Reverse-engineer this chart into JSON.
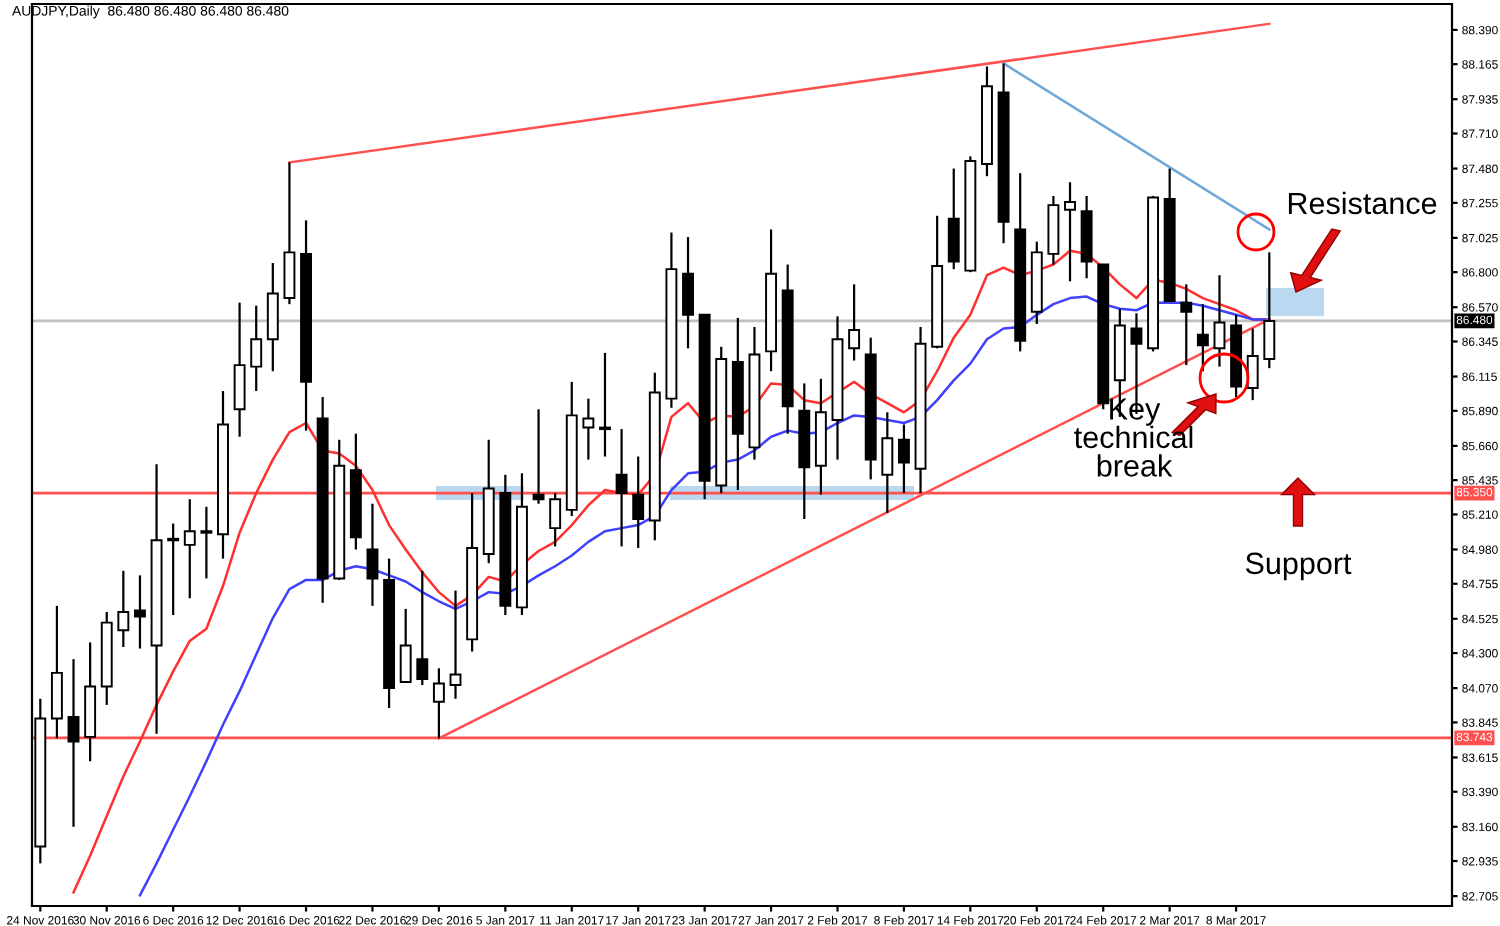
{
  "chart_data": {
    "type": "candlestick",
    "title": "AUDJPY,Daily  86.480 86.480 86.480 86.480",
    "categories": [
      "24 Nov 2016",
      null,
      null,
      null,
      "30 Nov 2016",
      null,
      null,
      null,
      "6 Dec 2016",
      null,
      null,
      null,
      "12 Dec 2016",
      null,
      null,
      null,
      "16 Dec 2016",
      null,
      null,
      null,
      "22 Dec 2016",
      null,
      null,
      null,
      "29 Dec 2016",
      null,
      null,
      null,
      "5 Jan 2017",
      null,
      null,
      null,
      "11 Jan 2017",
      null,
      null,
      null,
      "17 Jan 2017",
      null,
      null,
      null,
      "23 Jan 2017",
      null,
      null,
      null,
      "27 Jan 2017",
      null,
      null,
      null,
      "2 Feb 2017",
      null,
      null,
      null,
      "8 Feb 2017",
      null,
      null,
      null,
      "14 Feb 2017",
      null,
      null,
      null,
      "20 Feb 2017",
      null,
      null,
      null,
      "24 Feb 2017",
      null,
      null,
      null,
      "2 Mar 2017",
      null,
      null,
      null,
      "8 Mar 2017",
      null,
      null
    ],
    "ohlc": [
      [
        83.03,
        84.0,
        82.92,
        83.87
      ],
      [
        83.87,
        84.61,
        83.74,
        84.17
      ],
      [
        83.88,
        84.26,
        83.16,
        83.72
      ],
      [
        83.75,
        84.37,
        83.59,
        84.08
      ],
      [
        84.08,
        84.57,
        83.96,
        84.5
      ],
      [
        84.45,
        84.84,
        84.34,
        84.57
      ],
      [
        84.58,
        84.81,
        84.33,
        84.54
      ],
      [
        84.35,
        85.54,
        83.77,
        85.04
      ],
      [
        85.04,
        85.15,
        84.55,
        85.05
      ],
      [
        85.01,
        85.31,
        84.66,
        85.1
      ],
      [
        85.09,
        85.26,
        84.79,
        85.1
      ],
      [
        85.08,
        86.02,
        84.92,
        85.8
      ],
      [
        85.9,
        86.6,
        85.72,
        86.19
      ],
      [
        86.18,
        86.58,
        86.02,
        86.36
      ],
      [
        86.36,
        86.86,
        86.15,
        86.66
      ],
      [
        86.63,
        87.52,
        86.59,
        86.93
      ],
      [
        86.92,
        87.14,
        85.76,
        86.08
      ],
      [
        85.84,
        85.98,
        84.63,
        84.79
      ],
      [
        84.79,
        85.7,
        84.78,
        85.53
      ],
      [
        85.5,
        85.74,
        84.98,
        85.06
      ],
      [
        84.98,
        85.28,
        84.61,
        84.79
      ],
      [
        84.78,
        84.92,
        83.94,
        84.07
      ],
      [
        84.11,
        84.59,
        84.11,
        84.35
      ],
      [
        84.26,
        84.84,
        84.09,
        84.13
      ],
      [
        83.98,
        84.2,
        83.74,
        84.1
      ],
      [
        84.09,
        84.71,
        84.0,
        84.16
      ],
      [
        84.39,
        85.35,
        84.31,
        84.99
      ],
      [
        84.95,
        85.7,
        84.89,
        85.38
      ],
      [
        85.35,
        85.47,
        84.55,
        84.61
      ],
      [
        84.6,
        85.48,
        84.55,
        85.26
      ],
      [
        85.34,
        85.9,
        85.28,
        85.31
      ],
      [
        85.12,
        85.35,
        85.0,
        85.31
      ],
      [
        85.24,
        86.08,
        85.2,
        85.86
      ],
      [
        85.78,
        85.97,
        85.57,
        85.84
      ],
      [
        85.77,
        86.27,
        85.59,
        85.78
      ],
      [
        85.47,
        85.77,
        85.0,
        85.35
      ],
      [
        85.34,
        85.59,
        84.99,
        85.18
      ],
      [
        85.17,
        86.14,
        85.04,
        86.01
      ],
      [
        85.97,
        87.06,
        85.91,
        86.82
      ],
      [
        86.79,
        87.03,
        86.3,
        86.52
      ],
      [
        86.52,
        86.52,
        85.31,
        85.43
      ],
      [
        85.4,
        86.31,
        85.35,
        86.23
      ],
      [
        86.21,
        86.5,
        85.37,
        85.74
      ],
      [
        85.65,
        86.44,
        85.57,
        86.26
      ],
      [
        86.28,
        87.08,
        86.15,
        86.79
      ],
      [
        86.68,
        86.85,
        85.74,
        85.92
      ],
      [
        85.89,
        86.07,
        85.18,
        85.52
      ],
      [
        85.53,
        86.1,
        85.34,
        85.88
      ],
      [
        85.83,
        86.51,
        85.57,
        86.36
      ],
      [
        86.3,
        86.72,
        86.22,
        86.42
      ],
      [
        86.26,
        86.37,
        85.44,
        85.57
      ],
      [
        85.47,
        85.88,
        85.22,
        85.71
      ],
      [
        85.7,
        85.8,
        85.35,
        85.55
      ],
      [
        85.51,
        86.44,
        85.35,
        86.33
      ],
      [
        86.31,
        87.17,
        86.3,
        86.84
      ],
      [
        87.15,
        87.48,
        86.82,
        86.87
      ],
      [
        86.81,
        87.56,
        86.8,
        87.53
      ],
      [
        87.51,
        88.15,
        87.43,
        88.02
      ],
      [
        87.98,
        88.17,
        86.99,
        87.13
      ],
      [
        87.08,
        87.45,
        86.28,
        86.35
      ],
      [
        86.54,
        87.0,
        86.46,
        86.93
      ],
      [
        86.92,
        87.3,
        86.85,
        87.24
      ],
      [
        87.21,
        87.39,
        86.74,
        87.26
      ],
      [
        87.2,
        87.3,
        86.76,
        86.87
      ],
      [
        86.85,
        86.85,
        85.9,
        85.94
      ],
      [
        86.09,
        86.56,
        85.85,
        86.45
      ],
      [
        86.43,
        86.53,
        85.87,
        86.33
      ],
      [
        86.3,
        87.3,
        86.28,
        87.29
      ],
      [
        87.28,
        87.48,
        86.61,
        86.61
      ],
      [
        86.6,
        86.72,
        86.19,
        86.54
      ],
      [
        86.39,
        86.59,
        86.15,
        86.32
      ],
      [
        86.3,
        86.78,
        86.18,
        86.47
      ],
      [
        86.45,
        86.52,
        85.98,
        86.05
      ],
      [
        86.04,
        86.43,
        85.96,
        86.25
      ],
      [
        86.23,
        86.93,
        86.17,
        86.48
      ]
    ],
    "series": [
      {
        "type": "line",
        "color": "#ff3030",
        "values": [
          null,
          null,
          82.73,
          82.97,
          83.23,
          83.49,
          83.72,
          83.96,
          84.18,
          84.38,
          84.46,
          84.74,
          85.09,
          85.35,
          85.57,
          85.75,
          85.81,
          85.63,
          85.61,
          85.53,
          85.37,
          85.14,
          84.98,
          84.83,
          84.7,
          84.61,
          84.68,
          84.8,
          84.77,
          84.88,
          84.97,
          85.03,
          85.14,
          85.27,
          85.37,
          85.35,
          85.34,
          85.47,
          85.85,
          85.94,
          85.81,
          85.86,
          85.85,
          85.92,
          86.07,
          86.06,
          85.96,
          85.94,
          86.01,
          86.08,
          86.0,
          85.94,
          85.88,
          85.96,
          86.15,
          86.37,
          86.52,
          86.78,
          86.83,
          86.78,
          86.81,
          86.85,
          86.94,
          86.92,
          86.83,
          86.72,
          86.63,
          86.75,
          86.73,
          86.69,
          86.63,
          86.59,
          86.55,
          86.49,
          86.49
        ]
      },
      {
        "type": "line",
        "color": "#4040ff",
        "values": [
          null,
          null,
          null,
          null,
          null,
          null,
          82.71,
          82.92,
          83.14,
          83.36,
          83.59,
          83.83,
          84.05,
          84.29,
          84.53,
          84.72,
          84.78,
          84.78,
          84.84,
          84.87,
          84.85,
          84.81,
          84.77,
          84.7,
          84.64,
          84.59,
          84.64,
          84.7,
          84.69,
          84.74,
          84.81,
          84.87,
          84.94,
          85.03,
          85.1,
          85.12,
          85.14,
          85.2,
          85.37,
          85.48,
          85.49,
          85.55,
          85.57,
          85.63,
          85.72,
          85.76,
          85.74,
          85.75,
          85.81,
          85.86,
          85.85,
          85.83,
          85.81,
          85.85,
          85.96,
          86.09,
          86.2,
          86.36,
          86.43,
          86.44,
          86.52,
          86.59,
          86.63,
          86.64,
          86.59,
          86.56,
          86.55,
          86.6,
          86.6,
          86.6,
          86.58,
          86.55,
          86.52,
          86.49,
          86.49
        ]
      },
      {
        "type": "line",
        "color": "#ff5050",
        "values": [
          null,
          null,
          null,
          null,
          null,
          null,
          null,
          null,
          null,
          null,
          null,
          null,
          null,
          null,
          null,
          87.52,
          null,
          null,
          null,
          null,
          null,
          null,
          null,
          null,
          null,
          null,
          null,
          null,
          null,
          null,
          null,
          null,
          null,
          null,
          null,
          null,
          null,
          null,
          null,
          null,
          null,
          null,
          null,
          null,
          null,
          null,
          null,
          null,
          null,
          null,
          null,
          null,
          null,
          null,
          null,
          null,
          null,
          null,
          null,
          null,
          null,
          null,
          null,
          null,
          null,
          null,
          null,
          null,
          null,
          null,
          null,
          null,
          null,
          null,
          88.43
        ]
      },
      {
        "type": "line",
        "color": "#ff5050",
        "values": [
          null,
          null,
          null,
          null,
          null,
          null,
          null,
          null,
          null,
          null,
          null,
          null,
          null,
          null,
          null,
          null,
          null,
          null,
          null,
          null,
          null,
          null,
          null,
          null,
          83.74,
          null,
          null,
          null,
          null,
          null,
          null,
          null,
          null,
          null,
          null,
          null,
          null,
          null,
          null,
          null,
          null,
          null,
          null,
          null,
          null,
          null,
          null,
          null,
          null,
          null,
          null,
          null,
          null,
          null,
          null,
          null,
          null,
          null,
          null,
          null,
          null,
          null,
          null,
          null,
          null,
          null,
          null,
          null,
          null,
          null,
          null,
          null,
          null,
          null,
          86.49
        ]
      },
      {
        "type": "line",
        "color": "#6fa8dc",
        "values": [
          null,
          null,
          null,
          null,
          null,
          null,
          null,
          null,
          null,
          null,
          null,
          null,
          null,
          null,
          null,
          null,
          null,
          null,
          null,
          null,
          null,
          null,
          null,
          null,
          null,
          null,
          null,
          null,
          null,
          null,
          null,
          null,
          null,
          null,
          null,
          null,
          null,
          null,
          null,
          null,
          null,
          null,
          null,
          null,
          null,
          null,
          null,
          null,
          null,
          null,
          null,
          null,
          null,
          null,
          null,
          null,
          null,
          null,
          88.17,
          null,
          null,
          null,
          null,
          null,
          null,
          null,
          null,
          null,
          null,
          null,
          null,
          null,
          null,
          null,
          87.08
        ]
      }
    ],
    "ylim": [
      82.64,
      88.56
    ],
    "yticks": [
      {
        "value": 88.39,
        "label": "88.390"
      },
      {
        "value": 88.165,
        "label": "88.165"
      },
      {
        "value": 87.935,
        "label": "87.935"
      },
      {
        "value": 87.71,
        "label": "87.710"
      },
      {
        "value": 87.48,
        "label": "87.480"
      },
      {
        "value": 87.255,
        "label": "87.255"
      },
      {
        "value": 87.025,
        "label": "87.025"
      },
      {
        "value": 86.8,
        "label": "86.800"
      },
      {
        "value": 86.57,
        "label": "86.570"
      },
      {
        "value": 86.345,
        "label": "86.345"
      },
      {
        "value": 86.115,
        "label": "86.115"
      },
      {
        "value": 85.89,
        "label": "85.890"
      },
      {
        "value": 85.66,
        "label": "85.660"
      },
      {
        "value": 85.435,
        "label": "85.435"
      },
      {
        "value": 85.21,
        "label": "85.210"
      },
      {
        "value": 84.98,
        "label": "84.980"
      },
      {
        "value": 84.755,
        "label": "84.755"
      },
      {
        "value": 84.525,
        "label": "84.525"
      },
      {
        "value": 84.3,
        "label": "84.300"
      },
      {
        "value": 84.07,
        "label": "84.070"
      },
      {
        "value": 83.845,
        "label": "83.845"
      },
      {
        "value": 83.615,
        "label": "83.615"
      },
      {
        "value": 83.39,
        "label": "83.390"
      },
      {
        "value": 83.16,
        "label": "83.160"
      },
      {
        "value": 82.935,
        "label": "82.935"
      },
      {
        "value": 82.705,
        "label": "82.705"
      }
    ],
    "ref_lines": [
      {
        "axis": "y",
        "value": 85.35,
        "label": "85.350",
        "color": "#ff5050"
      },
      {
        "axis": "y",
        "value": 83.743,
        "label": "83.743",
        "color": "#ff5050"
      },
      {
        "axis": "y",
        "value": 86.48,
        "label": "86.480",
        "color": "#c0c0c0"
      }
    ],
    "annotations": [
      "Resistance",
      "Key\ntechnical\nbreak",
      "Support"
    ],
    "grid": false,
    "legend": false
  }
}
